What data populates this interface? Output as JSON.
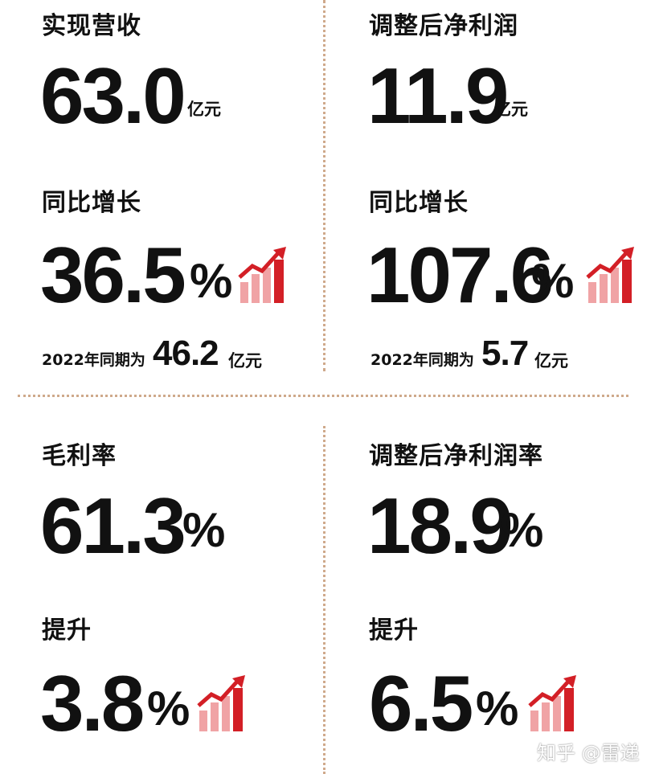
{
  "colors": {
    "accent_red": "#d31f26",
    "accent_pink": "#f0a3a5",
    "divider": "#cfa98b",
    "text": "#111111"
  },
  "panels": {
    "revenue": {
      "title": "实现营收",
      "value": "63.0",
      "unit": "亿元",
      "growth_label": "同比增长",
      "growth_value": "36.5",
      "growth_unit": "%",
      "prev_prefix": "2022年同期为",
      "prev_value": "46.2",
      "prev_unit": "亿元",
      "icon": "growth-chart-icon"
    },
    "adj_net_profit": {
      "title": "调整后净利润",
      "value": "11.9",
      "unit": "亿元",
      "growth_label": "同比增长",
      "growth_value": "107.6",
      "growth_unit": "%",
      "prev_prefix": "2022年同期为",
      "prev_value": "5.7",
      "prev_unit": "亿元",
      "icon": "growth-chart-icon"
    },
    "gross_margin": {
      "title": "毛利率",
      "value": "61.3",
      "unit": "%",
      "change_label": "提升",
      "change_value": "3.8",
      "change_unit": "%",
      "icon": "growth-chart-icon"
    },
    "adj_net_margin": {
      "title": "调整后净利润率",
      "value": "18.9",
      "unit": "%",
      "change_label": "提升",
      "change_value": "6.5",
      "change_unit": "%",
      "icon": "growth-chart-icon"
    }
  },
  "watermark": "知乎 @雷递"
}
